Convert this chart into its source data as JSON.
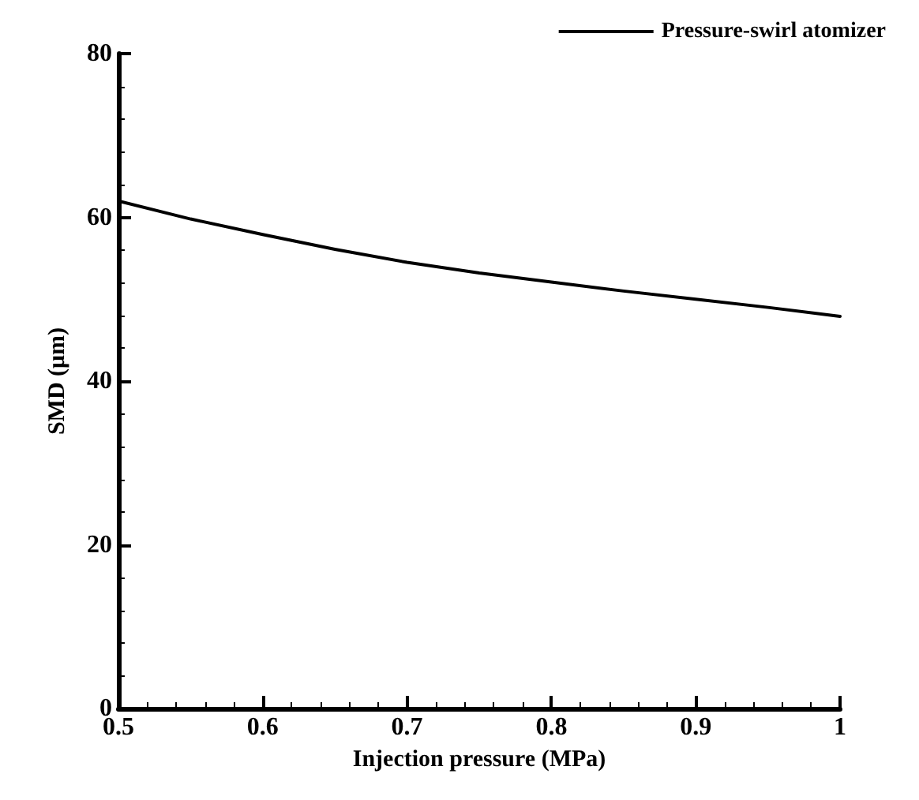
{
  "chart_data": {
    "type": "line",
    "xlabel": "Injection pressure (MPa)",
    "ylabel": "SMD (μm)",
    "x": [
      0.5,
      0.55,
      0.6,
      0.65,
      0.7,
      0.75,
      0.8,
      0.85,
      0.9,
      0.95,
      1.0
    ],
    "series": [
      {
        "name": "Pressure-swirl atomizer",
        "color": "#000000",
        "values": [
          62.0,
          59.8,
          57.9,
          56.1,
          54.5,
          53.2,
          52.1,
          51.0,
          50.0,
          49.0,
          47.9
        ]
      }
    ],
    "xlim": [
      0.5,
      1
    ],
    "xticks": [
      0.5,
      0.6,
      0.7,
      0.8,
      0.9,
      1
    ],
    "ylim": [
      0,
      80
    ],
    "yticks": [
      0,
      20,
      40,
      60,
      80
    ],
    "grid": false,
    "legend": "top right",
    "marker": "none",
    "line_style": "solid"
  }
}
